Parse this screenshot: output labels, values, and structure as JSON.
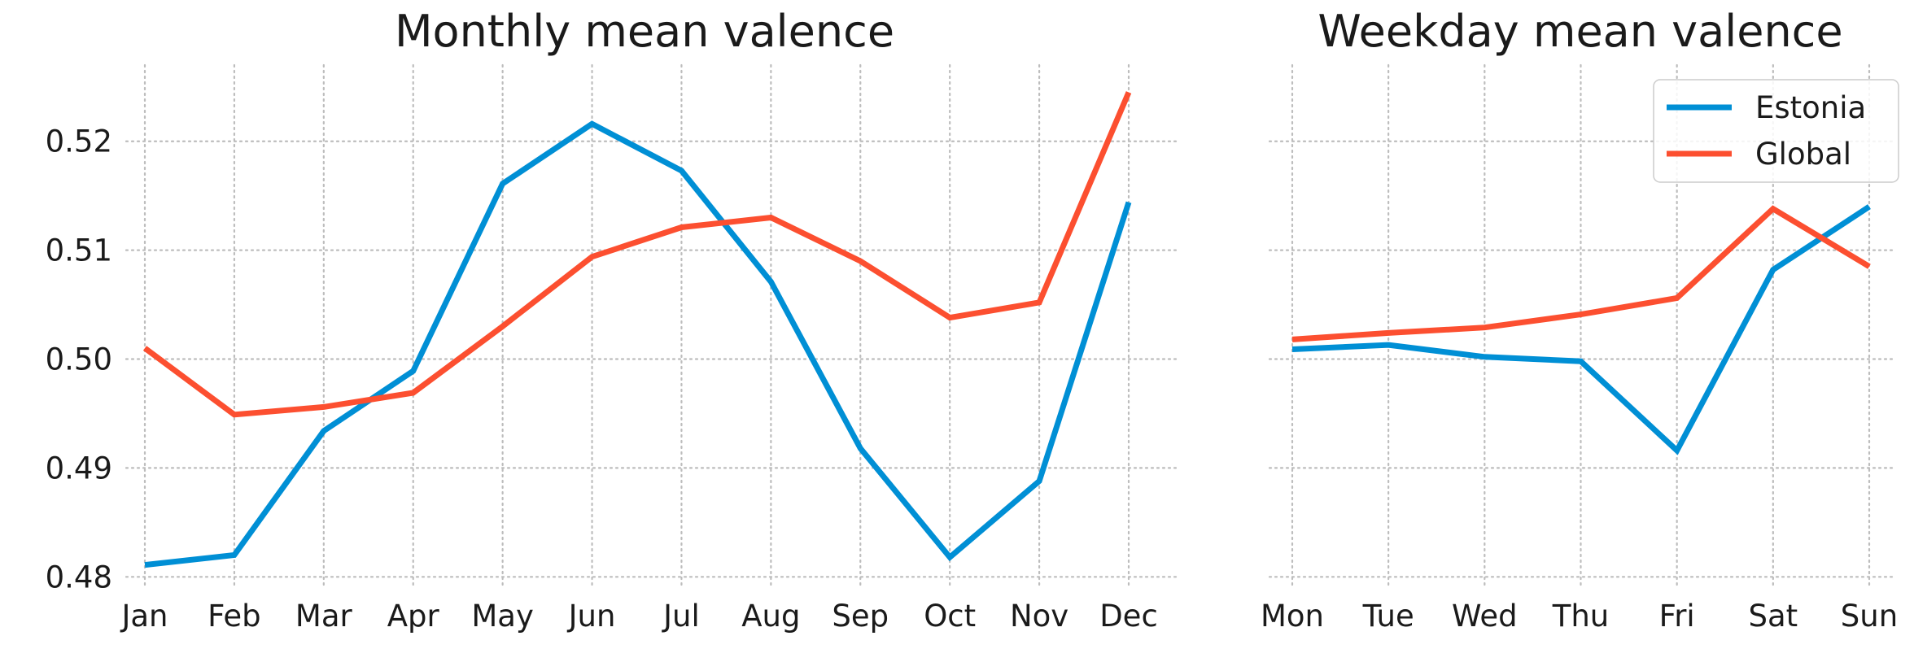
{
  "chart_data": [
    {
      "type": "line",
      "title": "Monthly mean valence",
      "xlabel": "",
      "ylabel": "",
      "categories": [
        "Jan",
        "Feb",
        "Mar",
        "Apr",
        "May",
        "Jun",
        "Jul",
        "Aug",
        "Sep",
        "Oct",
        "Nov",
        "Dec"
      ],
      "ylim": [
        0.4795,
        0.527
      ],
      "yticks": [
        0.48,
        0.49,
        0.5,
        0.51,
        0.52
      ],
      "ytick_labels": [
        "0.48",
        "0.49",
        "0.50",
        "0.51",
        "0.52"
      ],
      "grid": true,
      "grid_style": "dotted",
      "legend": false,
      "series": [
        {
          "name": "Estonia",
          "color": "#008fd5",
          "values": [
            0.4811,
            0.482,
            0.4934,
            0.4989,
            0.5161,
            0.5216,
            0.5173,
            0.5071,
            0.4918,
            0.4818,
            0.4888,
            0.5144
          ]
        },
        {
          "name": "Global",
          "color": "#fc4f30",
          "values": [
            0.501,
            0.4949,
            0.4956,
            0.4969,
            0.503,
            0.5094,
            0.5121,
            0.513,
            0.509,
            0.5038,
            0.5052,
            0.5245
          ]
        }
      ]
    },
    {
      "type": "line",
      "title": "Weekday mean valence",
      "xlabel": "",
      "ylabel": "",
      "categories": [
        "Mon",
        "Tue",
        "Wed",
        "Thu",
        "Fri",
        "Sat",
        "Sun"
      ],
      "ylim": [
        0.4795,
        0.527
      ],
      "yticks": [
        0.48,
        0.49,
        0.5,
        0.51,
        0.52
      ],
      "ytick_labels": [],
      "grid": true,
      "grid_style": "dotted",
      "legend": true,
      "legend_position": "top-right",
      "series": [
        {
          "name": "Estonia",
          "color": "#008fd5",
          "values": [
            0.5009,
            0.5013,
            0.5002,
            0.4998,
            0.4916,
            0.5082,
            0.514
          ]
        },
        {
          "name": "Global",
          "color": "#fc4f30",
          "values": [
            0.5018,
            0.5024,
            0.5029,
            0.5041,
            0.5056,
            0.5138,
            0.5085
          ]
        }
      ]
    }
  ]
}
